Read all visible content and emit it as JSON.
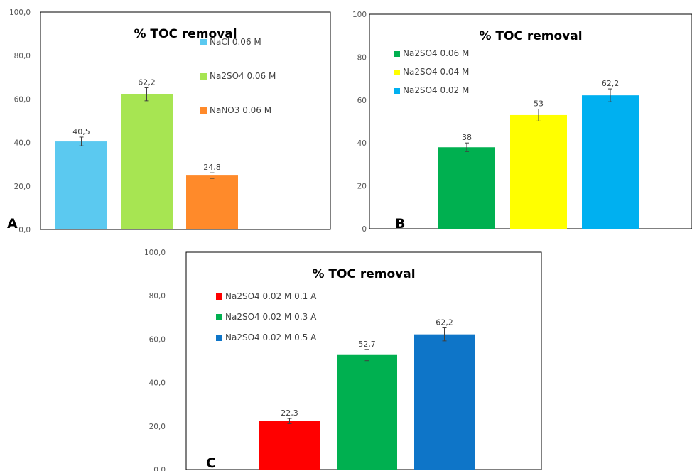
{
  "chart_data": [
    {
      "type": "bar",
      "panel_label": "A",
      "title": "% TOC removal",
      "ylim": [
        0,
        100
      ],
      "yticks": [
        "0,0",
        "20,0",
        "40,0",
        "60,0",
        "80,0",
        "100,0"
      ],
      "legend_position": "top-right",
      "series": [
        {
          "name": "NaCl 0.06 M",
          "value": 40.5,
          "label": "40,5",
          "error": 2.0,
          "color": "#5BC9F0"
        },
        {
          "name": "Na2SO4 0.06 M",
          "value": 62.2,
          "label": "62,2",
          "error": 3.0,
          "color": "#A7E552"
        },
        {
          "name": "NaNO3 0.06 M",
          "value": 24.8,
          "label": "24,8",
          "error": 1.3,
          "color": "#FF8A2A"
        }
      ]
    },
    {
      "type": "bar",
      "panel_label": "B",
      "title": "% TOC removal",
      "ylim": [
        0,
        100
      ],
      "yticks": [
        "0",
        "20",
        "40",
        "60",
        "80",
        "100"
      ],
      "legend_position": "top-left",
      "series": [
        {
          "name": "Na2SO4 0.06 M",
          "value": 38,
          "label": "38",
          "error": 2.0,
          "color": "#00B050"
        },
        {
          "name": "Na2SO4 0.04 M",
          "value": 53,
          "label": "53",
          "error": 2.8,
          "color": "#FFFF00"
        },
        {
          "name": "Na2SO4 0.02 M",
          "value": 62.2,
          "label": "62,2",
          "error": 3.0,
          "color": "#00B0F0"
        }
      ]
    },
    {
      "type": "bar",
      "panel_label": "C",
      "title": "% TOC removal",
      "ylim": [
        0,
        100
      ],
      "yticks": [
        "0,0",
        "20,0",
        "40,0",
        "60,0",
        "80,0",
        "100,0"
      ],
      "legend_position": "top-left",
      "series": [
        {
          "name": "Na2SO4 0.02 M 0.1 A",
          "value": 22.3,
          "label": "22,3",
          "error": 1.2,
          "color": "#FF0000"
        },
        {
          "name": "Na2SO4 0.02 M 0.3 A",
          "value": 52.7,
          "label": "52,7",
          "error": 2.6,
          "color": "#00B050"
        },
        {
          "name": "Na2SO4 0.02 M 0.5 A",
          "value": 62.2,
          "label": "62,2",
          "error": 3.0,
          "color": "#0E75C8"
        }
      ]
    }
  ]
}
